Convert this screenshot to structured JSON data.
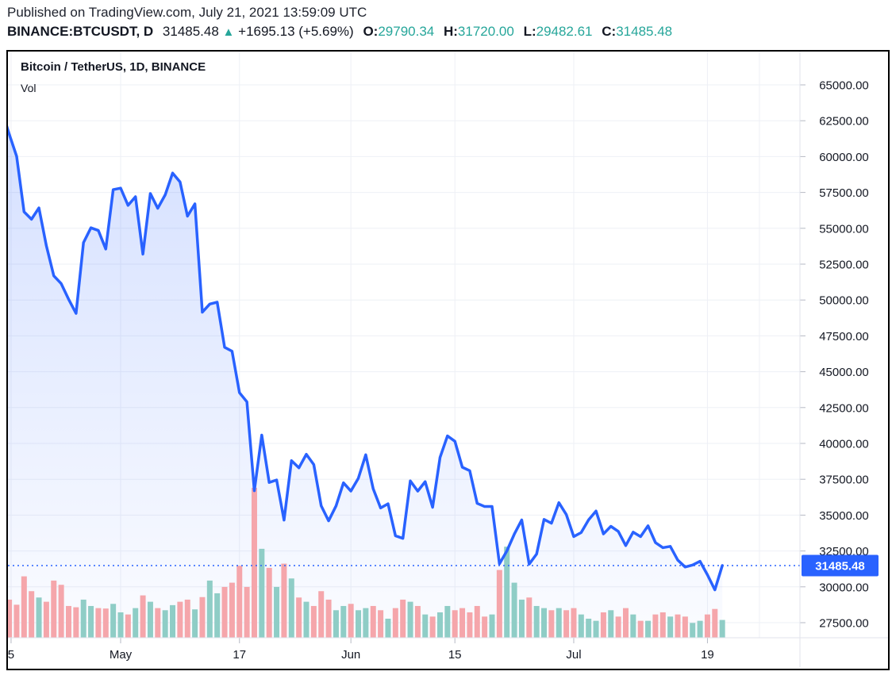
{
  "header": {
    "published_line": "Published on TradingView.com, July 21, 2021 13:59:09 UTC",
    "symbol_line": {
      "symbol": "BINANCE:BTCUSDT, D",
      "last_price": "31485.48",
      "direction_glyph": "▲",
      "change": "+1695.13 (+5.69%)",
      "ohlc": [
        {
          "label": "O:",
          "value": "29790.34"
        },
        {
          "label": "H:",
          "value": "31720.00"
        },
        {
          "label": "L:",
          "value": "29482.61"
        },
        {
          "label": "C:",
          "value": "31485.48"
        }
      ]
    }
  },
  "chart": {
    "title": "Bitcoin / TetherUS, 1D, BINANCE",
    "volume_label": "Vol",
    "last_price_badge": "31485.48",
    "colors": {
      "line": "#2962ff",
      "area_top": "rgba(41,98,255,0.21)",
      "area_bottom": "rgba(41,98,255,0.02)",
      "volume_up": "#8fcdc6",
      "volume_down": "#f5a6ab",
      "badge_bg": "#2962ff",
      "badge_text": "#ffffff",
      "grid": "#eef0f6",
      "separator": "#e0e3eb",
      "tick": "#b6bac4",
      "axis_text": "#131722",
      "accent_teal": "#26a69a",
      "header_text": "#1e222d"
    }
  },
  "chart_data": {
    "type": "line",
    "title": "Bitcoin / TetherUS, 1D, BINANCE",
    "legend": [
      "price line with area fill",
      "volume bars (up/down colored)"
    ],
    "y_axis": {
      "side": "right",
      "min": 27500,
      "max": 65000,
      "step": 2500,
      "tick_labels": [
        "65000.00",
        "62500.00",
        "60000.00",
        "57500.00",
        "55000.00",
        "52500.00",
        "50000.00",
        "47500.00",
        "45000.00",
        "42500.00",
        "40000.00",
        "37500.00",
        "35000.00",
        "32500.00",
        "30000.00",
        "27500.00"
      ]
    },
    "x_ticks": [
      {
        "label": "5",
        "day": 1.25
      },
      {
        "label": "May",
        "day": 16
      },
      {
        "label": "17",
        "day": 32
      },
      {
        "label": "Jun",
        "day": 47
      },
      {
        "label": "15",
        "day": 61
      },
      {
        "label": "Jul",
        "day": 77
      },
      {
        "label": "19",
        "day": 95
      },
      {
        "label": "",
        "day": 102
      }
    ],
    "last_price": 31485.48,
    "closes": [
      63216,
      61572,
      60020,
      56150,
      55633,
      56425,
      53787,
      51690,
      51139,
      50050,
      49066,
      54000,
      55033,
      54846,
      53555,
      57694,
      57800,
      56600,
      57200,
      53200,
      57424,
      56396,
      57332,
      58850,
      58232,
      55847,
      56704,
      49150,
      49716,
      49850,
      46700,
      46430,
      43537,
      42900,
      36700,
      40580,
      37280,
      37450,
      34655,
      38796,
      38300,
      39241,
      38529,
      35650,
      34605,
      35641,
      37253,
      36680,
      37568,
      39208,
      36841,
      35500,
      35790,
      33560,
      33380,
      37388,
      36675,
      37331,
      35546,
      39020,
      40525,
      40150,
      38340,
      38093,
      35820,
      35600,
      35600,
      31608,
      32505,
      33675,
      34663,
      31584,
      32283,
      34700,
      34434,
      35867,
      35040,
      33504,
      33786,
      34669,
      35286,
      33690,
      34220,
      33862,
      32875,
      33815,
      33502,
      34258,
      33086,
      32729,
      32820,
      31866,
      31383,
      31520,
      31780,
      30839,
      29790,
      31485.48
    ],
    "volumes_kbtc": [
      70,
      90,
      78,
      145,
      110,
      95,
      85,
      135,
      125,
      75,
      72,
      90,
      75,
      70,
      69,
      80,
      60,
      55,
      70,
      100,
      85,
      70,
      65,
      77,
      85,
      90,
      67,
      96,
      135,
      105,
      120,
      130,
      170,
      120,
      354,
      210,
      165,
      120,
      175,
      140,
      95,
      85,
      75,
      110,
      90,
      65,
      75,
      80,
      65,
      70,
      75,
      65,
      45,
      70,
      90,
      85,
      75,
      55,
      50,
      60,
      75,
      65,
      70,
      60,
      75,
      50,
      55,
      160,
      215,
      130,
      90,
      95,
      75,
      70,
      65,
      70,
      65,
      70,
      55,
      45,
      40,
      60,
      65,
      50,
      70,
      55,
      40,
      40,
      55,
      60,
      50,
      55,
      50,
      35,
      40,
      55,
      68,
      42
    ]
  }
}
